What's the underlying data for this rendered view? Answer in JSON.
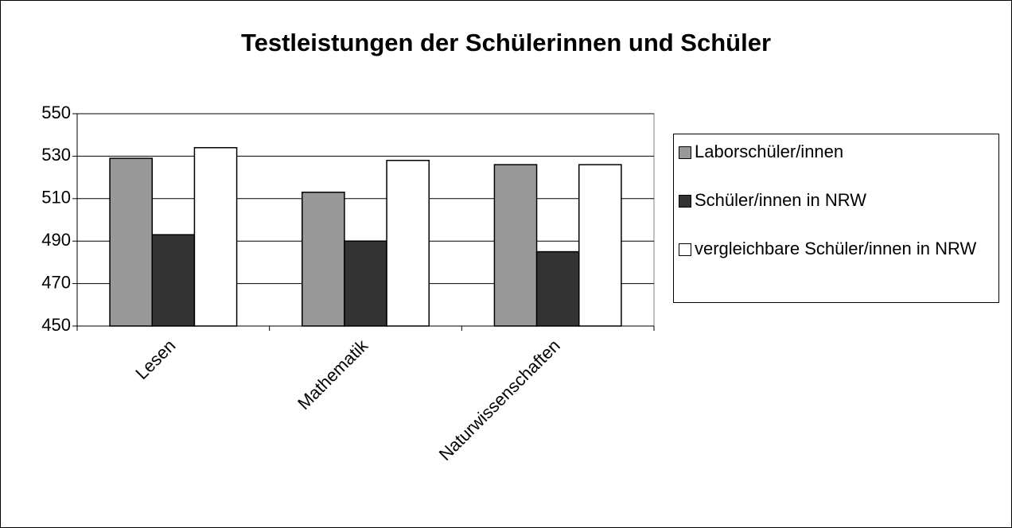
{
  "chart_data": {
    "type": "bar",
    "title": "Testleistungen der Schülerinnen und Schüler",
    "categories": [
      "Lesen",
      "Mathematik",
      "Naturwissenschaften"
    ],
    "series": [
      {
        "name": "Laborschüler/innen",
        "color": "#999999",
        "values": [
          529,
          513,
          526
        ]
      },
      {
        "name": "Schüler/innen in NRW",
        "color": "#333333",
        "values": [
          493,
          490,
          485
        ]
      },
      {
        "name": "vergleichbare Schüler/innen in NRW",
        "color": "#ffffff",
        "values": [
          534,
          528,
          526
        ]
      }
    ],
    "ylim": [
      450,
      550
    ],
    "yticks": [
      450,
      470,
      490,
      510,
      530,
      550
    ],
    "grid": true,
    "legend": "right"
  }
}
